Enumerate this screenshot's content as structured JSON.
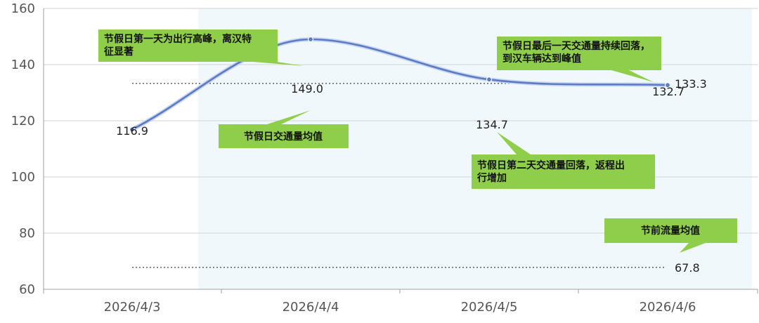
{
  "chart_data": {
    "type": "line",
    "categories": [
      "2026/4/3",
      "2026/4/4",
      "2026/4/5",
      "2026/4/6"
    ],
    "series": [
      {
        "values": [
          116.9,
          149.0,
          134.7,
          132.7
        ]
      }
    ],
    "data_labels": [
      "116.9",
      "149.0",
      "134.7",
      "132.7"
    ],
    "ylim": [
      60,
      160
    ],
    "yticks": [
      60,
      80,
      100,
      120,
      140,
      160
    ],
    "reference_lines": [
      {
        "value": 133.3,
        "label": "133.3",
        "style": "dotted"
      },
      {
        "value": 67.8,
        "label": "67.8",
        "style": "dotted"
      }
    ],
    "annotations": [
      {
        "text": "节假日第一天为出行高峰，离汉特征显著",
        "lines": [
          "节假日第一天为出行高峰，离汉特",
          "征显著"
        ]
      },
      {
        "text": "节假日交通量均值",
        "lines": [
          "节假日交通量均值"
        ]
      },
      {
        "text": "节假日第二天交通量回落，返程出行增加",
        "lines": [
          "节假日第二天交通量回落，返程出",
          "行增加"
        ]
      },
      {
        "text": "节假日最后一天交通量持续回落，到汉车辆达到峰值",
        "lines": [
          "节假日最后一天交通量持续回落，",
          "到汉车辆达到峰值"
        ]
      },
      {
        "text": "节前流量均值",
        "lines": [
          "节前流量均值"
        ]
      }
    ],
    "grid": true,
    "line_color": "#5b7bc4",
    "callout_color": "#8fce4a",
    "shaded_region_color": "#f1f8fb"
  }
}
